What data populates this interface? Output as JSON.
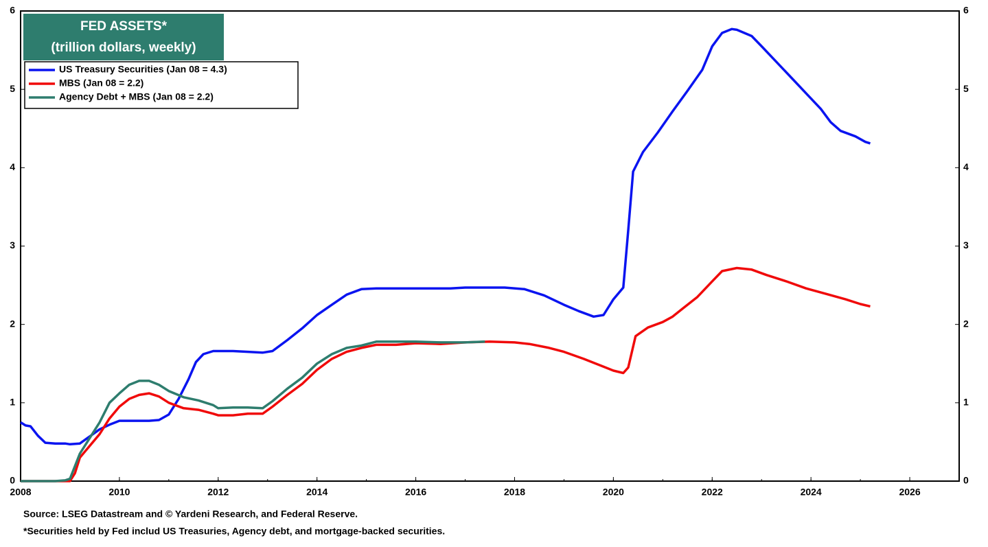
{
  "chart_data": {
    "type": "line",
    "title": "FED ASSETS*",
    "subtitle": "(trillion dollars, weekly)",
    "notes": [
      "Source: LSEG Datastream and © Yardeni Research, and Federal Reserve.",
      "*Securities held by Fed includ US Treasuries, Agency debt, and mortgage-backed securities."
    ],
    "xlim": [
      2008,
      2027
    ],
    "xticks": [
      2008,
      2010,
      2012,
      2014,
      2016,
      2018,
      2020,
      2022,
      2024,
      2026
    ],
    "ylim": [
      0,
      6
    ],
    "yticks": [
      0,
      1,
      2,
      3,
      4,
      5,
      6
    ],
    "legend": "upper left",
    "series": [
      {
        "name": "US Treasury Securities (Jan 08 = 4.3)",
        "color": "#0a14f0",
        "x": [
          2008.0,
          2008.1,
          2008.2,
          2008.35,
          2008.5,
          2008.7,
          2008.9,
          2009.0,
          2009.2,
          2009.4,
          2009.6,
          2009.8,
          2010.0,
          2010.3,
          2010.6,
          2010.8,
          2011.0,
          2011.2,
          2011.4,
          2011.55,
          2011.7,
          2011.9,
          2012.1,
          2012.3,
          2012.6,
          2012.9,
          2013.1,
          2013.4,
          2013.7,
          2014.0,
          2014.3,
          2014.6,
          2014.9,
          2015.2,
          2016.0,
          2016.7,
          2017.0,
          2017.8,
          2018.2,
          2018.6,
          2019.0,
          2019.3,
          2019.6,
          2019.8,
          2020.0,
          2020.2,
          2020.3,
          2020.4,
          2020.6,
          2020.9,
          2021.2,
          2021.5,
          2021.8,
          2022.0,
          2022.2,
          2022.4,
          2022.5,
          2022.8,
          2023.0,
          2023.3,
          2023.6,
          2023.9,
          2024.2,
          2024.4,
          2024.6,
          2024.9,
          2025.1,
          2025.2
        ],
        "values": [
          0.75,
          0.71,
          0.7,
          0.58,
          0.49,
          0.48,
          0.48,
          0.47,
          0.48,
          0.57,
          0.66,
          0.72,
          0.77,
          0.77,
          0.77,
          0.78,
          0.85,
          1.05,
          1.3,
          1.52,
          1.62,
          1.66,
          1.66,
          1.66,
          1.65,
          1.64,
          1.66,
          1.8,
          1.95,
          2.12,
          2.25,
          2.38,
          2.45,
          2.46,
          2.46,
          2.46,
          2.47,
          2.47,
          2.45,
          2.37,
          2.25,
          2.17,
          2.1,
          2.12,
          2.32,
          2.47,
          3.2,
          3.95,
          4.2,
          4.45,
          4.72,
          4.98,
          5.25,
          5.55,
          5.72,
          5.77,
          5.76,
          5.68,
          5.55,
          5.35,
          5.15,
          4.95,
          4.75,
          4.58,
          4.47,
          4.4,
          4.33,
          4.31
        ]
      },
      {
        "name": "MBS (Jan 08 = 2.2)",
        "color": "#f00a0a",
        "x": [
          2008.0,
          2008.8,
          2009.0,
          2009.1,
          2009.2,
          2009.4,
          2009.6,
          2009.8,
          2010.0,
          2010.2,
          2010.4,
          2010.6,
          2010.8,
          2011.0,
          2011.3,
          2011.6,
          2011.9,
          2012.0,
          2012.3,
          2012.6,
          2012.9,
          2013.1,
          2013.4,
          2013.7,
          2014.0,
          2014.3,
          2014.6,
          2014.9,
          2015.2,
          2015.6,
          2016.0,
          2016.5,
          2017.0,
          2017.5,
          2018.0,
          2018.3,
          2018.7,
          2019.0,
          2019.4,
          2019.8,
          2020.0,
          2020.2,
          2020.3,
          2020.45,
          2020.7,
          2021.0,
          2021.2,
          2021.4,
          2021.7,
          2022.0,
          2022.2,
          2022.5,
          2022.8,
          2023.1,
          2023.5,
          2023.9,
          2024.3,
          2024.7,
          2025.0,
          2025.2
        ],
        "values": [
          0,
          0,
          0,
          0.1,
          0.3,
          0.45,
          0.6,
          0.8,
          0.95,
          1.05,
          1.1,
          1.12,
          1.08,
          1.0,
          0.93,
          0.91,
          0.86,
          0.84,
          0.84,
          0.86,
          0.86,
          0.95,
          1.1,
          1.24,
          1.42,
          1.56,
          1.65,
          1.7,
          1.74,
          1.74,
          1.76,
          1.75,
          1.77,
          1.78,
          1.77,
          1.75,
          1.7,
          1.65,
          1.56,
          1.46,
          1.41,
          1.38,
          1.45,
          1.85,
          1.96,
          2.03,
          2.1,
          2.2,
          2.35,
          2.55,
          2.68,
          2.72,
          2.7,
          2.63,
          2.55,
          2.46,
          2.39,
          2.32,
          2.26,
          2.23
        ]
      },
      {
        "name": "Agency Debt + MBS (Jan 08 = 2.2)",
        "color": "#2e7d6e",
        "x": [
          2008.0,
          2008.7,
          2008.9,
          2009.0,
          2009.2,
          2009.4,
          2009.6,
          2009.8,
          2010.0,
          2010.2,
          2010.4,
          2010.6,
          2010.8,
          2011.0,
          2011.3,
          2011.6,
          2011.9,
          2012.0,
          2012.3,
          2012.6,
          2012.9,
          2013.1,
          2013.4,
          2013.7,
          2014.0,
          2014.3,
          2014.6,
          2014.9,
          2015.2,
          2016.0,
          2016.5,
          2017.0,
          2017.4
        ],
        "values": [
          0,
          0,
          0.01,
          0.03,
          0.35,
          0.55,
          0.75,
          1.0,
          1.12,
          1.23,
          1.28,
          1.28,
          1.23,
          1.15,
          1.07,
          1.03,
          0.97,
          0.93,
          0.94,
          0.94,
          0.93,
          1.02,
          1.18,
          1.32,
          1.5,
          1.62,
          1.7,
          1.73,
          1.78,
          1.78,
          1.77,
          1.77,
          1.78
        ]
      }
    ]
  }
}
